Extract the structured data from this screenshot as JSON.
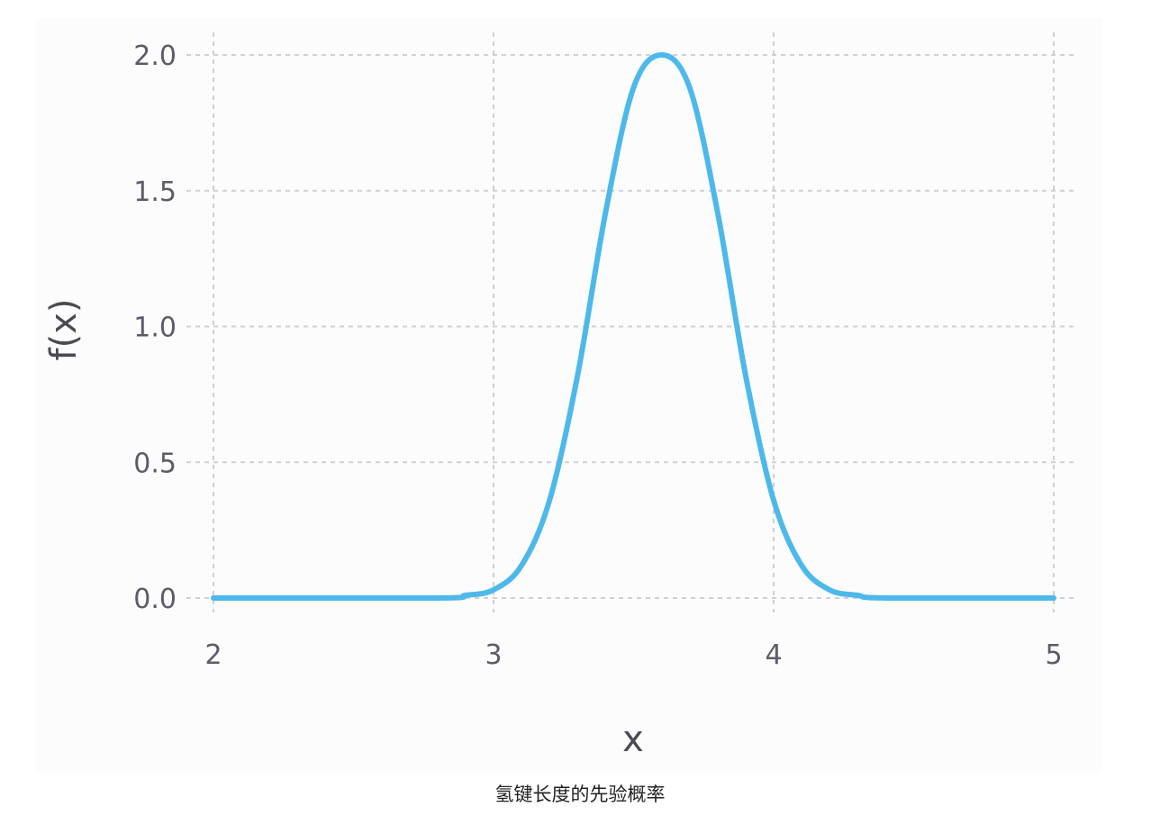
{
  "caption": "氢键长度的先验概率",
  "chart_data": {
    "type": "line",
    "title": "",
    "xlabel": "x",
    "ylabel": "f(x)",
    "xlim": [
      2,
      5
    ],
    "ylim": [
      0,
      2
    ],
    "x_ticks": [
      "2",
      "3",
      "4",
      "5"
    ],
    "y_ticks": [
      "0.0",
      "0.5",
      "1.0",
      "1.5",
      "2.0"
    ],
    "grid": true,
    "series": [
      {
        "color": "#4db8ea",
        "x": [
          2.0,
          2.8,
          2.9,
          3.0,
          3.1,
          3.2,
          3.3,
          3.4,
          3.5,
          3.6,
          3.7,
          3.8,
          3.9,
          4.0,
          4.1,
          4.2,
          4.3,
          4.4,
          5.0
        ],
        "y": [
          0.0,
          0.0,
          0.01,
          0.03,
          0.12,
          0.36,
          0.82,
          1.42,
          1.88,
          2.0,
          1.88,
          1.42,
          0.82,
          0.36,
          0.12,
          0.03,
          0.01,
          0.0,
          0.0
        ]
      }
    ]
  }
}
